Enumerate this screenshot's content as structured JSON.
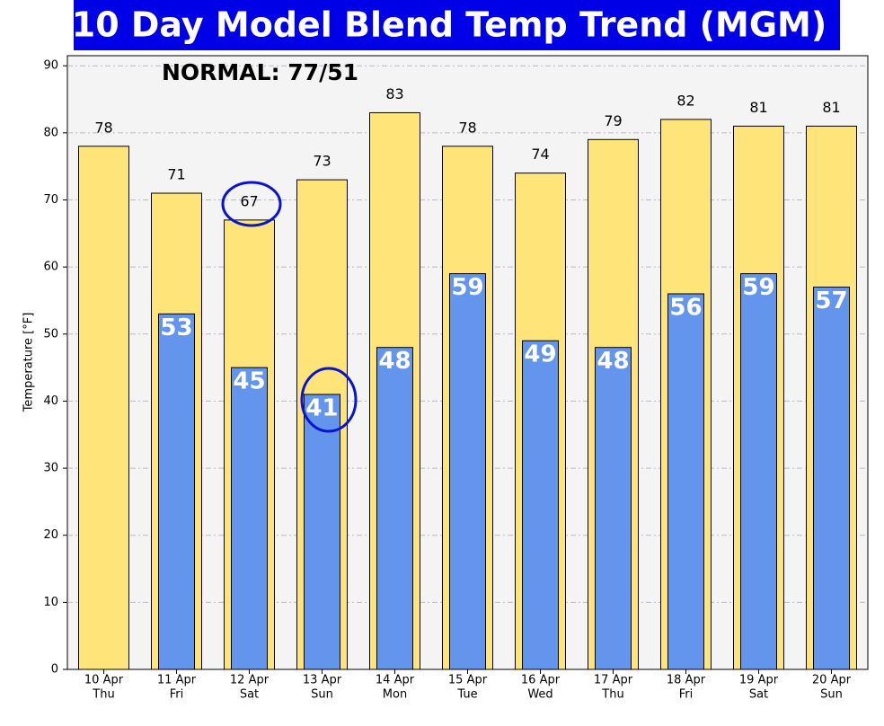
{
  "chart_data": {
    "type": "bar",
    "title": "10 Day Model Blend Temp Trend (MGM)",
    "annotation": "NORMAL: 77/51",
    "ylabel": "Temperature [°F]",
    "categories": [
      [
        "10 Apr",
        "Thu"
      ],
      [
        "11 Apr",
        "Fri"
      ],
      [
        "12 Apr",
        "Sat"
      ],
      [
        "13 Apr",
        "Sun"
      ],
      [
        "14 Apr",
        "Mon"
      ],
      [
        "15 Apr",
        "Tue"
      ],
      [
        "16 Apr",
        "Wed"
      ],
      [
        "17 Apr",
        "Thu"
      ],
      [
        "18 Apr",
        "Fri"
      ],
      [
        "19 Apr",
        "Sat"
      ],
      [
        "20 Apr",
        "Sun"
      ]
    ],
    "series": [
      {
        "color": "#FFE47A",
        "values": [
          78,
          71,
          67,
          73,
          83,
          78,
          74,
          79,
          82,
          81,
          81
        ]
      },
      {
        "color": "#6495ED",
        "values": [
          null,
          53,
          45,
          41,
          48,
          59,
          49,
          48,
          56,
          59,
          57
        ]
      }
    ],
    "ylim": [
      0,
      91.5
    ],
    "yticks": [
      0,
      10,
      20,
      30,
      40,
      50,
      60,
      70,
      80,
      90
    ],
    "grid": true
  }
}
